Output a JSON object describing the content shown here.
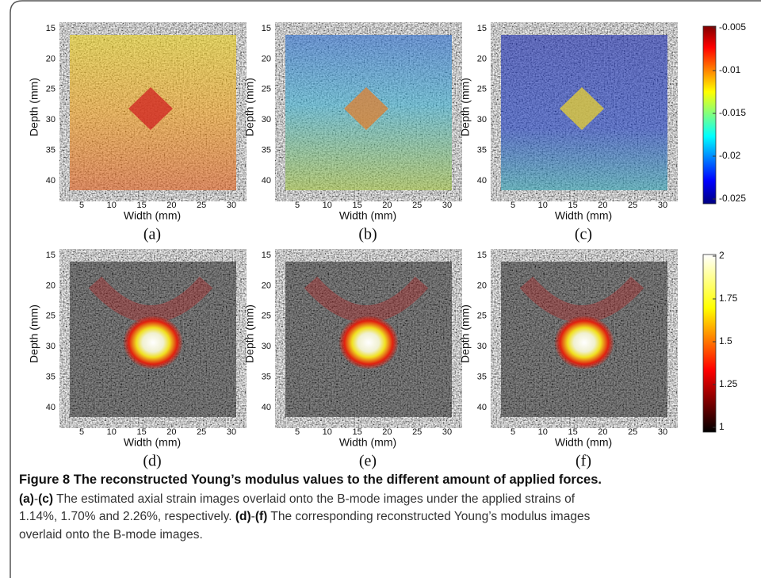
{
  "panels": [
    {
      "label": "(a)",
      "xlabel": "Width (mm)",
      "ylabel": "Depth (mm)",
      "xticks": [
        5,
        10,
        15,
        20,
        25,
        30
      ],
      "yticks": [
        15,
        20,
        25,
        30,
        35,
        40
      ]
    },
    {
      "label": "(b)",
      "xlabel": "Width (mm)",
      "ylabel": "Depth (mm)",
      "xticks": [
        5,
        10,
        15,
        20,
        25,
        30
      ],
      "yticks": [
        15,
        20,
        25,
        30,
        35,
        40
      ]
    },
    {
      "label": "(c)",
      "xlabel": "Width (mm)",
      "ylabel": "Depth (mm)",
      "xticks": [
        5,
        10,
        15,
        20,
        25,
        30
      ],
      "yticks": [
        15,
        20,
        25,
        30,
        35,
        40
      ]
    },
    {
      "label": "(d)",
      "xlabel": "Width (mm)",
      "ylabel": "Depth (mm)",
      "xticks": [
        5,
        10,
        15,
        20,
        25,
        30
      ],
      "yticks": [
        15,
        20,
        25,
        30,
        35,
        40
      ]
    },
    {
      "label": "(e)",
      "xlabel": "Width (mm)",
      "ylabel": "Depth (mm)",
      "xticks": [
        5,
        10,
        15,
        20,
        25,
        30
      ],
      "yticks": [
        15,
        20,
        25,
        30,
        35,
        40
      ]
    },
    {
      "label": "(f)",
      "xlabel": "Width (mm)",
      "ylabel": "Depth (mm)",
      "xticks": [
        5,
        10,
        15,
        20,
        25,
        30
      ],
      "yticks": [
        15,
        20,
        25,
        30,
        35,
        40
      ]
    }
  ],
  "colorbars": [
    {
      "ticks": [
        -0.005,
        -0.01,
        -0.015,
        -0.02,
        -0.025
      ]
    },
    {
      "ticks": [
        2,
        1.75,
        1.5,
        1.25,
        1
      ]
    }
  ],
  "caption": {
    "title": "Figure 8 The reconstructed Young’s modulus values to the different amount of applied forces.",
    "lines": [
      [
        {
          "text": "(a)",
          "bold": true
        },
        {
          "text": "-",
          "bold": false
        },
        {
          "text": "(c)",
          "bold": true
        },
        {
          "text": " The estimated axial strain images overlaid onto the B-mode images under the applied strains of",
          "bold": false
        }
      ],
      [
        {
          "text": "1.14%, 1.70% and 2.26%, respectively. ",
          "bold": false
        },
        {
          "text": "(d)",
          "bold": true
        },
        {
          "text": "-",
          "bold": false
        },
        {
          "text": "(f)",
          "bold": true
        },
        {
          "text": " The corresponding reconstructed Young’s modulus images",
          "bold": false
        }
      ],
      [
        {
          "text": "overlaid onto the B-mode images.",
          "bold": false
        }
      ]
    ]
  }
}
